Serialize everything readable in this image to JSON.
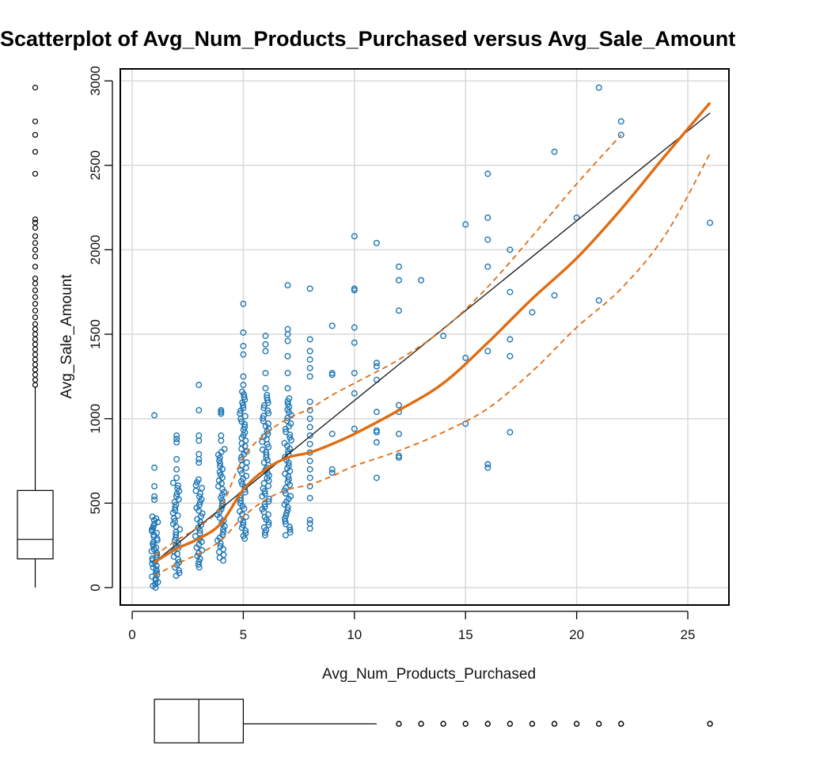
{
  "chart_data": {
    "type": "scatter",
    "title": "Scatterplot of Avg_Num_Products_Purchased versus Avg_Sale_Amount",
    "xlabel": "Avg_Num_Products_Purchased",
    "ylabel": "Avg_Sale_Amount",
    "xlim": [
      0,
      27
    ],
    "ylim": [
      -100,
      3050
    ],
    "xticks": [
      0,
      5,
      10,
      15,
      20,
      25
    ],
    "yticks": [
      0,
      500,
      1000,
      1500,
      2000,
      2500,
      3000
    ],
    "grid": true,
    "colors": {
      "points": "#1f77b4",
      "smooth": "#e06c12",
      "regression": "#222222",
      "grid": "#d9d9d9",
      "box": "#000000"
    },
    "points_sample": [
      [
        10,
        2080
      ],
      [
        10,
        1770
      ],
      [
        10,
        1760
      ],
      [
        10,
        1540
      ],
      [
        10,
        1450
      ],
      [
        10,
        1270
      ],
      [
        10,
        1150
      ],
      [
        10,
        940
      ],
      [
        11,
        2040
      ],
      [
        11,
        1330
      ],
      [
        11,
        1310
      ],
      [
        11,
        1230
      ],
      [
        11,
        1040
      ],
      [
        11,
        930
      ],
      [
        11,
        920
      ],
      [
        11,
        860
      ],
      [
        11,
        650
      ],
      [
        12,
        1900
      ],
      [
        12,
        1820
      ],
      [
        12,
        1640
      ],
      [
        12,
        1080
      ],
      [
        12,
        1040
      ],
      [
        12,
        910
      ],
      [
        12,
        780
      ],
      [
        12,
        770
      ],
      [
        13,
        1820
      ],
      [
        14,
        1490
      ],
      [
        15,
        2150
      ],
      [
        15,
        1360
      ],
      [
        15,
        970
      ],
      [
        16,
        2450
      ],
      [
        16,
        2190
      ],
      [
        16,
        2060
      ],
      [
        16,
        1900
      ],
      [
        16,
        1400
      ],
      [
        16,
        730
      ],
      [
        16,
        710
      ],
      [
        17,
        2000
      ],
      [
        17,
        1750
      ],
      [
        17,
        1470
      ],
      [
        17,
        1370
      ],
      [
        17,
        920
      ],
      [
        18,
        1630
      ],
      [
        19,
        2580
      ],
      [
        19,
        1730
      ],
      [
        20,
        2190
      ],
      [
        21,
        2960
      ],
      [
        21,
        1700
      ],
      [
        22,
        2760
      ],
      [
        22,
        2680
      ],
      [
        26,
        2160
      ],
      [
        8,
        1770
      ],
      [
        8,
        1470
      ],
      [
        8,
        1400
      ],
      [
        8,
        1350
      ],
      [
        8,
        1300
      ],
      [
        8,
        1250
      ],
      [
        8,
        1100
      ],
      [
        8,
        1050
      ],
      [
        8,
        1000
      ],
      [
        8,
        950
      ],
      [
        8,
        900
      ],
      [
        8,
        850
      ],
      [
        8,
        800
      ],
      [
        8,
        750
      ],
      [
        8,
        700
      ],
      [
        8,
        650
      ],
      [
        8,
        600
      ],
      [
        8,
        530
      ],
      [
        8,
        400
      ],
      [
        8,
        380
      ],
      [
        8,
        350
      ],
      [
        9,
        1550
      ],
      [
        9,
        1270
      ],
      [
        9,
        1260
      ],
      [
        9,
        910
      ],
      [
        9,
        700
      ],
      [
        9,
        680
      ],
      [
        7,
        1790
      ],
      [
        7,
        1530
      ],
      [
        7,
        1500
      ],
      [
        7,
        1460
      ],
      [
        7,
        1370
      ],
      [
        7,
        1270
      ],
      [
        7,
        1180
      ],
      [
        6,
        1490
      ],
      [
        6,
        1440
      ],
      [
        6,
        1400
      ],
      [
        6,
        1270
      ],
      [
        6,
        1180
      ],
      [
        5,
        1680
      ],
      [
        5,
        1510
      ],
      [
        5,
        1430
      ],
      [
        5,
        1380
      ],
      [
        5,
        1250
      ],
      [
        5,
        1200
      ],
      [
        4,
        1050
      ],
      [
        4,
        1040
      ],
      [
        4,
        1030
      ],
      [
        4,
        900
      ],
      [
        4,
        870
      ],
      [
        3,
        1200
      ],
      [
        3,
        1050
      ],
      [
        3,
        900
      ],
      [
        3,
        870
      ],
      [
        3,
        790
      ],
      [
        3,
        760
      ],
      [
        3,
        740
      ],
      [
        2,
        900
      ],
      [
        2,
        880
      ],
      [
        2,
        860
      ],
      [
        2,
        760
      ],
      [
        2,
        700
      ],
      [
        2,
        650
      ],
      [
        1,
        1020
      ],
      [
        1,
        710
      ],
      [
        1,
        600
      ],
      [
        1,
        540
      ],
      [
        1,
        520
      ]
    ],
    "point_columns": [
      {
        "x": 1,
        "ymin": 0,
        "ymax": 420,
        "n": 40
      },
      {
        "x": 2,
        "ymin": 70,
        "ymax": 620,
        "n": 35
      },
      {
        "x": 3,
        "ymin": 120,
        "ymax": 640,
        "n": 32
      },
      {
        "x": 4,
        "ymin": 160,
        "ymax": 820,
        "n": 40
      },
      {
        "x": 5,
        "ymin": 290,
        "ymax": 1160,
        "n": 55
      },
      {
        "x": 6,
        "ymin": 310,
        "ymax": 1140,
        "n": 55
      },
      {
        "x": 7,
        "ymin": 310,
        "ymax": 1120,
        "n": 50
      }
    ],
    "smooth_line": [
      [
        1,
        150
      ],
      [
        2,
        230
      ],
      [
        3,
        290
      ],
      [
        4,
        380
      ],
      [
        5,
        580
      ],
      [
        6,
        700
      ],
      [
        7,
        770
      ],
      [
        8,
        800
      ],
      [
        9,
        850
      ],
      [
        10,
        910
      ],
      [
        12,
        1050
      ],
      [
        14,
        1210
      ],
      [
        16,
        1450
      ],
      [
        18,
        1710
      ],
      [
        20,
        1950
      ],
      [
        22,
        2240
      ],
      [
        24,
        2560
      ],
      [
        26,
        2870
      ]
    ],
    "smooth_upper": [
      [
        1,
        190
      ],
      [
        2,
        280
      ],
      [
        3,
        360
      ],
      [
        4,
        480
      ],
      [
        5,
        770
      ],
      [
        6,
        910
      ],
      [
        7,
        1000
      ],
      [
        8,
        1060
      ],
      [
        9,
        1140
      ],
      [
        10,
        1210
      ],
      [
        12,
        1350
      ],
      [
        14,
        1530
      ],
      [
        16,
        1780
      ],
      [
        18,
        2080
      ],
      [
        20,
        2390
      ],
      [
        22,
        2680
      ]
    ],
    "smooth_lower": [
      [
        1,
        70
      ],
      [
        2,
        140
      ],
      [
        3,
        200
      ],
      [
        4,
        280
      ],
      [
        5,
        420
      ],
      [
        6,
        520
      ],
      [
        7,
        580
      ],
      [
        8,
        610
      ],
      [
        9,
        660
      ],
      [
        10,
        720
      ],
      [
        12,
        810
      ],
      [
        14,
        920
      ],
      [
        16,
        1060
      ],
      [
        18,
        1280
      ],
      [
        20,
        1540
      ],
      [
        22,
        1770
      ],
      [
        24,
        2090
      ],
      [
        26,
        2570
      ]
    ],
    "regression_line": [
      [
        1,
        150
      ],
      [
        26,
        2810
      ]
    ],
    "y_boxplot": {
      "whisker_low": 0,
      "q1": 170,
      "median": 285,
      "q3": 575,
      "whisker_high": 1190,
      "outliers": [
        1200,
        1230,
        1260,
        1290,
        1320,
        1350,
        1380,
        1410,
        1440,
        1470,
        1500,
        1530,
        1560,
        1600,
        1640,
        1680,
        1720,
        1760,
        1800,
        1830,
        1900,
        1960,
        2000,
        2040,
        2080,
        2130,
        2160,
        2180,
        2450,
        2580,
        2680,
        2760,
        2960
      ]
    },
    "x_boxplot": {
      "whisker_low": 1,
      "q1": 1,
      "median": 3,
      "q3": 5,
      "whisker_high": 11,
      "outliers": [
        12,
        13,
        14,
        15,
        16,
        17,
        18,
        19,
        20,
        21,
        22,
        26
      ]
    }
  }
}
